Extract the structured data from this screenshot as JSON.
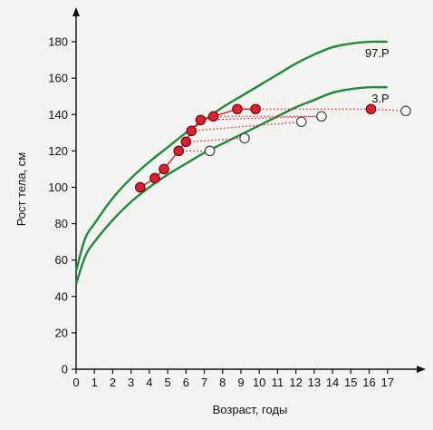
{
  "chart_data": {
    "type": "line",
    "xlabel": "Возраст, годы",
    "ylabel": "Рост тела, см",
    "xlim": [
      0,
      18.2
    ],
    "ylim": [
      0,
      188
    ],
    "x_ticks": [
      0,
      1,
      2,
      3,
      4,
      5,
      6,
      7,
      8,
      9,
      10,
      11,
      12,
      13,
      14,
      15,
      16,
      17
    ],
    "x_tick_labels": [
      "0",
      "1",
      "2",
      "3",
      "4",
      "5",
      "6",
      "7",
      "8",
      "9",
      "10",
      "11",
      "12",
      "13",
      "14",
      "15",
      "16",
      "17"
    ],
    "y_ticks": [
      0,
      20,
      40,
      60,
      80,
      100,
      120,
      140,
      160,
      180
    ],
    "y_tick_labels": [
      "0",
      "20",
      "40",
      "60",
      "80",
      "100",
      "120",
      "140",
      "160",
      "180"
    ],
    "grid": false,
    "colors": {
      "curve": "#1e8a3c",
      "marker_fill": "#e0202e",
      "marker_stroke": "#6a0a10",
      "open_marker_fill": "#ffffff",
      "open_marker_stroke": "#444444",
      "link_line": "#e0202e",
      "axis": "#111111"
    },
    "curves": [
      {
        "name": "97.P",
        "x": [
          0,
          0.5,
          1,
          2,
          3,
          4,
          5,
          6,
          7,
          8,
          9,
          10,
          11,
          12,
          13,
          14,
          15,
          16,
          17
        ],
        "y": [
          54,
          72,
          80,
          94,
          105,
          114,
          122,
          130,
          137,
          144,
          150,
          156,
          162,
          168,
          173,
          177,
          179,
          180,
          180
        ]
      },
      {
        "name": "3.P",
        "x": [
          0,
          0.5,
          1,
          2,
          3,
          4,
          5,
          6,
          7,
          8,
          9,
          10,
          11,
          12,
          13,
          14,
          15,
          16,
          17
        ],
        "y": [
          47,
          62,
          70,
          82,
          92,
          100,
          107,
          113,
          119,
          124,
          129,
          134,
          139,
          144,
          148,
          152,
          154,
          155,
          155
        ]
      }
    ],
    "series": [
      {
        "marker": "filled",
        "x": [
          3.5,
          4.3,
          4.8,
          5.6,
          6.0,
          6.3,
          6.8,
          7.5,
          8.8,
          9.8,
          16.1
        ],
        "y": [
          100,
          105,
          110,
          120,
          125,
          131,
          137,
          139,
          143,
          143,
          143
        ]
      },
      {
        "marker": "open",
        "x": [
          7.3,
          9.2,
          12.3,
          13.4,
          18.0
        ],
        "y": [
          120,
          127,
          136,
          139,
          142
        ]
      }
    ],
    "links": [
      {
        "x1": 5.6,
        "y1": 120,
        "x2": 7.3,
        "y2": 120
      },
      {
        "x1": 6.0,
        "y1": 125,
        "x2": 9.2,
        "y2": 127
      },
      {
        "x1": 6.3,
        "y1": 131,
        "x2": 12.3,
        "y2": 136
      },
      {
        "x1": 6.8,
        "y1": 137,
        "x2": 13.4,
        "y2": 139
      },
      {
        "x1": 7.5,
        "y1": 139,
        "x2": 13.4,
        "y2": 139
      },
      {
        "x1": 8.8,
        "y1": 143,
        "x2": 16.1,
        "y2": 143
      },
      {
        "x1": 16.1,
        "y1": 143,
        "x2": 18.0,
        "y2": 142
      }
    ]
  }
}
